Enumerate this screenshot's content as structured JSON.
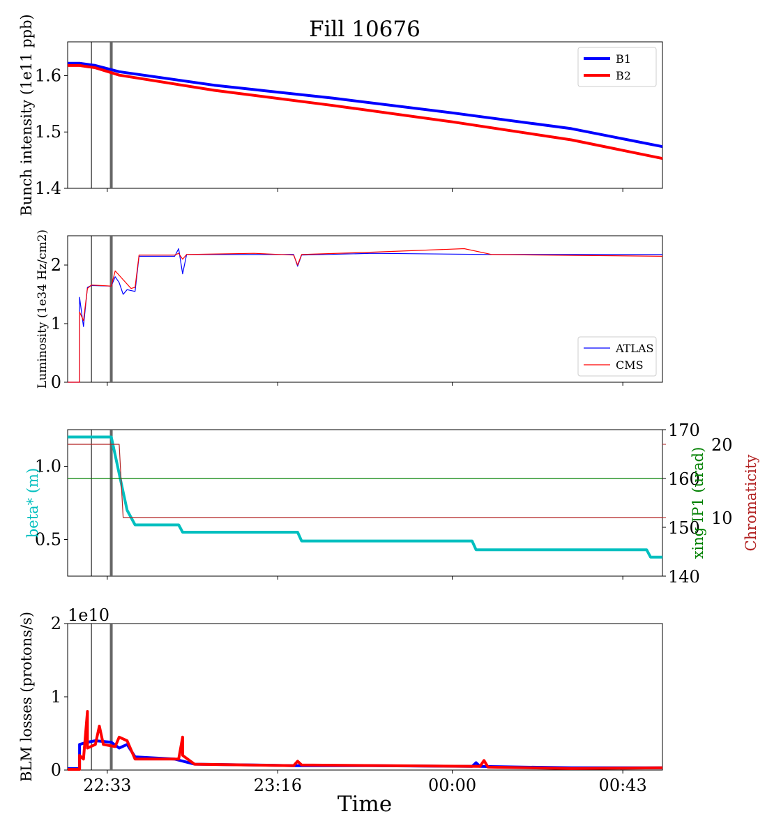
{
  "figure_title": "Fill 10676",
  "x_axis_title": "Time",
  "x_ticks": [
    "22:33",
    "23:16",
    "00:00",
    "00:43"
  ],
  "colors": {
    "b1": "#0000ff",
    "b2": "#ff0000",
    "beta": "#00bfbf",
    "xing": "#008000",
    "chroma": "#b22222",
    "marker_thin": "#000000",
    "marker_thick": "#666666"
  },
  "markers": {
    "thin_time": "22:29",
    "thick_time": "22:34"
  },
  "chart_data": [
    {
      "type": "line",
      "panel": "intensity",
      "ylabel": "Bunch intensity (1e11 ppb)",
      "ylim": [
        1.4,
        1.66
      ],
      "yticks": [
        "1.4",
        "1.5",
        "1.6"
      ],
      "legend_position": "top-right",
      "series": [
        {
          "name": "B1",
          "points": [
            [
              "22:23",
              1.622
            ],
            [
              "22:26",
              1.622
            ],
            [
              "22:30",
              1.618
            ],
            [
              "22:36",
              1.607
            ],
            [
              "23:00",
              1.583
            ],
            [
              "23:30",
              1.56
            ],
            [
              "00:00",
              1.534
            ],
            [
              "00:30",
              1.506
            ],
            [
              "00:53",
              1.474
            ]
          ]
        },
        {
          "name": "B2",
          "points": [
            [
              "22:23",
              1.618
            ],
            [
              "22:26",
              1.618
            ],
            [
              "22:30",
              1.614
            ],
            [
              "22:36",
              1.601
            ],
            [
              "23:00",
              1.574
            ],
            [
              "23:30",
              1.547
            ],
            [
              "00:00",
              1.518
            ],
            [
              "00:30",
              1.486
            ],
            [
              "00:53",
              1.453
            ]
          ]
        }
      ]
    },
    {
      "type": "line",
      "panel": "luminosity",
      "ylabel": "Luminosity (1e34 Hz/cm2)",
      "ylim": [
        0,
        2.5
      ],
      "yticks": [
        "0",
        "1",
        "2"
      ],
      "legend_position": "bottom-right",
      "series": [
        {
          "name": "ATLAS",
          "points": [
            [
              "22:23",
              0.0
            ],
            [
              "22:26",
              0.0
            ],
            [
              "22:26",
              1.45
            ],
            [
              "22:27",
              0.95
            ],
            [
              "22:28",
              1.62
            ],
            [
              "22:29",
              1.65
            ],
            [
              "22:34",
              1.64
            ],
            [
              "22:35",
              1.8
            ],
            [
              "22:36",
              1.7
            ],
            [
              "22:37",
              1.5
            ],
            [
              "22:38",
              1.58
            ],
            [
              "22:40",
              1.55
            ],
            [
              "22:41",
              2.15
            ],
            [
              "22:50",
              2.15
            ],
            [
              "22:51",
              2.28
            ],
            [
              "22:52",
              1.85
            ],
            [
              "22:53",
              2.18
            ],
            [
              "23:10",
              2.18
            ],
            [
              "23:20",
              2.18
            ],
            [
              "23:21",
              1.98
            ],
            [
              "23:22",
              2.17
            ],
            [
              "23:40",
              2.2
            ],
            [
              "00:10",
              2.18
            ],
            [
              "00:53",
              2.18
            ]
          ]
        },
        {
          "name": "CMS",
          "points": [
            [
              "22:23",
              0.0
            ],
            [
              "22:26",
              0.0
            ],
            [
              "22:26",
              1.2
            ],
            [
              "22:27",
              1.05
            ],
            [
              "22:28",
              1.6
            ],
            [
              "22:29",
              1.66
            ],
            [
              "22:34",
              1.64
            ],
            [
              "22:35",
              1.9
            ],
            [
              "22:37",
              1.75
            ],
            [
              "22:39",
              1.6
            ],
            [
              "22:40",
              1.62
            ],
            [
              "22:41",
              2.17
            ],
            [
              "22:50",
              2.17
            ],
            [
              "22:51",
              2.2
            ],
            [
              "22:52",
              2.1
            ],
            [
              "22:53",
              2.18
            ],
            [
              "23:10",
              2.2
            ],
            [
              "23:20",
              2.17
            ],
            [
              "23:21",
              2.0
            ],
            [
              "23:22",
              2.18
            ],
            [
              "23:40",
              2.22
            ],
            [
              "00:03",
              2.28
            ],
            [
              "00:10",
              2.18
            ],
            [
              "00:53",
              2.15
            ]
          ]
        }
      ]
    },
    {
      "type": "line",
      "panel": "optics",
      "ylabel": "beta* (m)",
      "ylim": [
        0.25,
        1.25
      ],
      "yticks": [
        "0.5",
        "1.0"
      ],
      "right_axis": {
        "ylabel": "xing IP1 (urad)",
        "ylim": [
          140,
          170
        ],
        "yticks": [
          "140",
          "150",
          "160",
          "170"
        ]
      },
      "far_right_axis": {
        "ylabel": "Chromaticity",
        "ylim": [
          2,
          22
        ],
        "yticks": [
          "10",
          "20"
        ]
      },
      "series": [
        {
          "name": "beta*",
          "axis": "left",
          "points": [
            [
              "22:23",
              1.2
            ],
            [
              "22:34",
              1.2
            ],
            [
              "22:36",
              0.95
            ],
            [
              "22:38",
              0.7
            ],
            [
              "22:40",
              0.6
            ],
            [
              "22:51",
              0.6
            ],
            [
              "22:52",
              0.55
            ],
            [
              "23:21",
              0.55
            ],
            [
              "23:22",
              0.49
            ],
            [
              "00:05",
              0.49
            ],
            [
              "00:06",
              0.43
            ],
            [
              "00:49",
              0.43
            ],
            [
              "00:50",
              0.38
            ],
            [
              "00:53",
              0.38
            ]
          ]
        },
        {
          "name": "xing IP1",
          "axis": "right",
          "points": [
            [
              "22:23",
              160
            ],
            [
              "00:53",
              160
            ]
          ]
        },
        {
          "name": "Chromaticity",
          "axis": "far_right",
          "points": [
            [
              "22:23",
              20
            ],
            [
              "22:36",
              20
            ],
            [
              "22:37",
              10
            ],
            [
              "00:53",
              10
            ]
          ]
        }
      ]
    },
    {
      "type": "line",
      "panel": "losses",
      "ylabel": "BLM losses (protons/s)",
      "y_offset_text": "1e10",
      "ylim": [
        0,
        2
      ],
      "yticks": [
        "0",
        "1",
        "2"
      ],
      "series": [
        {
          "name": "B1",
          "points": [
            [
              "22:23",
              0.02
            ],
            [
              "22:26",
              0.02
            ],
            [
              "22:26",
              0.35
            ],
            [
              "22:28",
              0.38
            ],
            [
              "22:30",
              0.4
            ],
            [
              "22:34",
              0.38
            ],
            [
              "22:36",
              0.3
            ],
            [
              "22:38",
              0.35
            ],
            [
              "22:40",
              0.18
            ],
            [
              "22:50",
              0.15
            ],
            [
              "22:55",
              0.08
            ],
            [
              "23:10",
              0.07
            ],
            [
              "23:20",
              0.06
            ],
            [
              "23:40",
              0.06
            ],
            [
              "00:05",
              0.05
            ],
            [
              "00:06",
              0.1
            ],
            [
              "00:07",
              0.05
            ],
            [
              "00:30",
              0.03
            ],
            [
              "00:53",
              0.03
            ]
          ]
        },
        {
          "name": "B2",
          "points": [
            [
              "22:23",
              0.01
            ],
            [
              "22:26",
              0.01
            ],
            [
              "22:26",
              0.2
            ],
            [
              "22:27",
              0.15
            ],
            [
              "22:28",
              0.8
            ],
            [
              "22:28",
              0.3
            ],
            [
              "22:30",
              0.35
            ],
            [
              "22:31",
              0.6
            ],
            [
              "22:32",
              0.35
            ],
            [
              "22:35",
              0.32
            ],
            [
              "22:36",
              0.45
            ],
            [
              "22:38",
              0.4
            ],
            [
              "22:40",
              0.15
            ],
            [
              "22:51",
              0.15
            ],
            [
              "22:52",
              0.45
            ],
            [
              "22:52",
              0.2
            ],
            [
              "22:55",
              0.08
            ],
            [
              "23:20",
              0.06
            ],
            [
              "23:21",
              0.12
            ],
            [
              "23:22",
              0.07
            ],
            [
              "00:07",
              0.05
            ],
            [
              "00:08",
              0.13
            ],
            [
              "00:09",
              0.04
            ],
            [
              "00:30",
              0.02
            ],
            [
              "00:53",
              0.03
            ]
          ]
        }
      ]
    }
  ]
}
